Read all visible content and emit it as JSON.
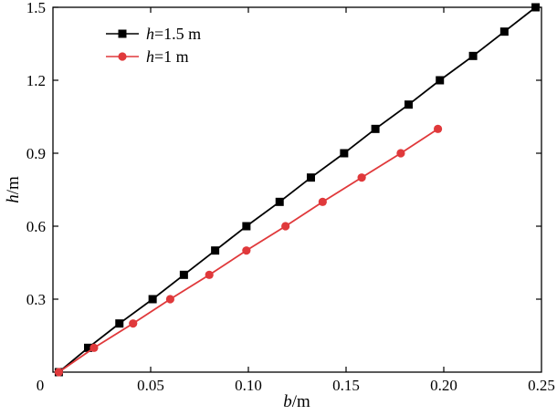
{
  "chart_data": {
    "type": "line",
    "title": "",
    "xlabel": {
      "var": "b",
      "unit": "/m"
    },
    "ylabel": {
      "var": "h",
      "unit": "/m"
    },
    "xlim": [
      0,
      0.25
    ],
    "ylim": [
      0,
      1.5
    ],
    "xticks": [
      "0",
      "0.05",
      "0.10",
      "0.15",
      "0.20",
      "0.25"
    ],
    "yticks": [
      "0.3",
      "0.6",
      "0.9",
      "1.2",
      "1.5"
    ],
    "grid": false,
    "legend_position": "top-left",
    "series": [
      {
        "name": "h=1.5 m",
        "legend_var": "h",
        "legend_rest": "=1.5 m",
        "color": "#000000",
        "marker": "square",
        "x": [
          0.003,
          0.018,
          0.034,
          0.051,
          0.067,
          0.083,
          0.099,
          0.116,
          0.132,
          0.149,
          0.165,
          0.182,
          0.198,
          0.215,
          0.231,
          0.247
        ],
        "y": [
          0.0,
          0.1,
          0.2,
          0.3,
          0.4,
          0.5,
          0.6,
          0.7,
          0.8,
          0.9,
          1.0,
          1.1,
          1.2,
          1.3,
          1.4,
          1.5
        ]
      },
      {
        "name": "h=1 m",
        "legend_var": "h",
        "legend_rest": "=1 m",
        "color": "#e0393b",
        "marker": "circle",
        "x": [
          0.003,
          0.021,
          0.041,
          0.06,
          0.08,
          0.099,
          0.119,
          0.138,
          0.158,
          0.178,
          0.197
        ],
        "y": [
          0.0,
          0.1,
          0.2,
          0.3,
          0.4,
          0.5,
          0.6,
          0.7,
          0.8,
          0.9,
          1.0
        ]
      }
    ]
  }
}
